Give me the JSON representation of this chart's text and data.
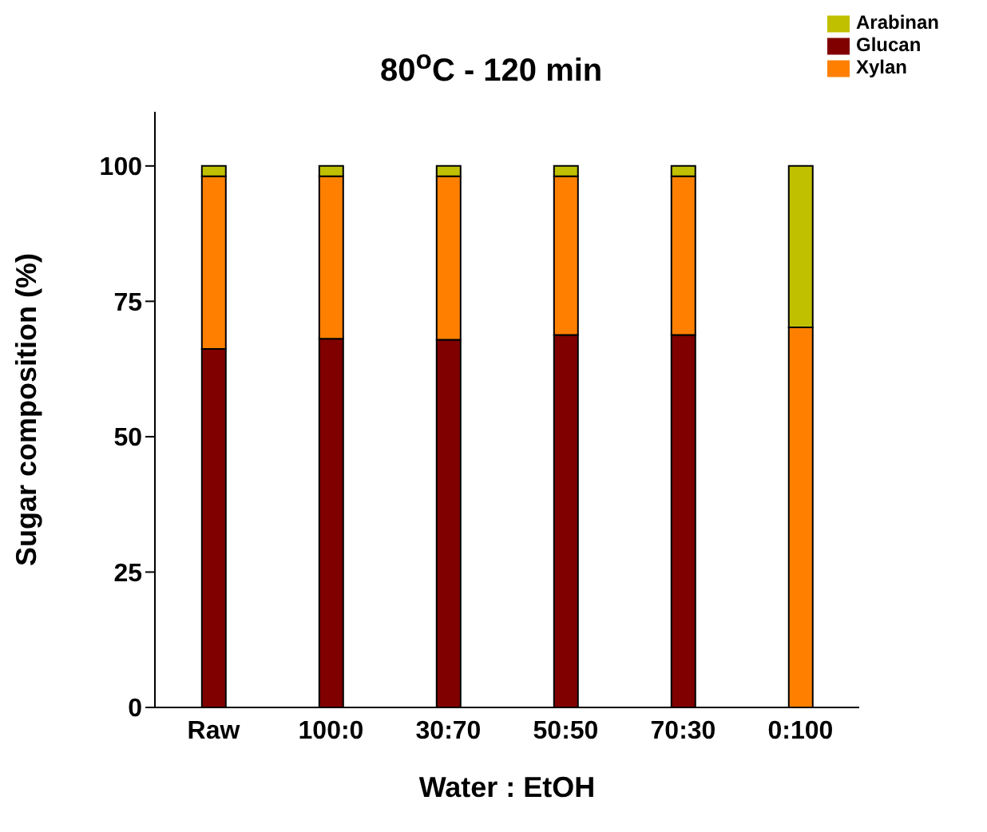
{
  "chart_data": {
    "type": "bar",
    "stacked": true,
    "title": "80$^{o}$C - 120 min",
    "xlabel": "Water : EtOH",
    "ylabel": "Sugar composition (%)",
    "categories": [
      "Raw",
      "100:0",
      "30:70",
      "50:50",
      "70:30",
      "0:100"
    ],
    "series": [
      {
        "name": "Glucan",
        "color": "#800000",
        "values": [
          66.2,
          68.1,
          67.9,
          68.8,
          68.8,
          0
        ]
      },
      {
        "name": "Xylan",
        "color": "#ff8000",
        "values": [
          31.9,
          30.0,
          30.2,
          29.3,
          29.3,
          70.2
        ]
      },
      {
        "name": "Arabinan",
        "color": "#c0c000",
        "values": [
          1.9,
          1.9,
          1.9,
          1.9,
          1.9,
          29.8
        ]
      }
    ],
    "ylim": [
      0,
      110
    ],
    "yticks": [
      0,
      25,
      50,
      75,
      100
    ],
    "grid": false,
    "legend": "top right"
  }
}
